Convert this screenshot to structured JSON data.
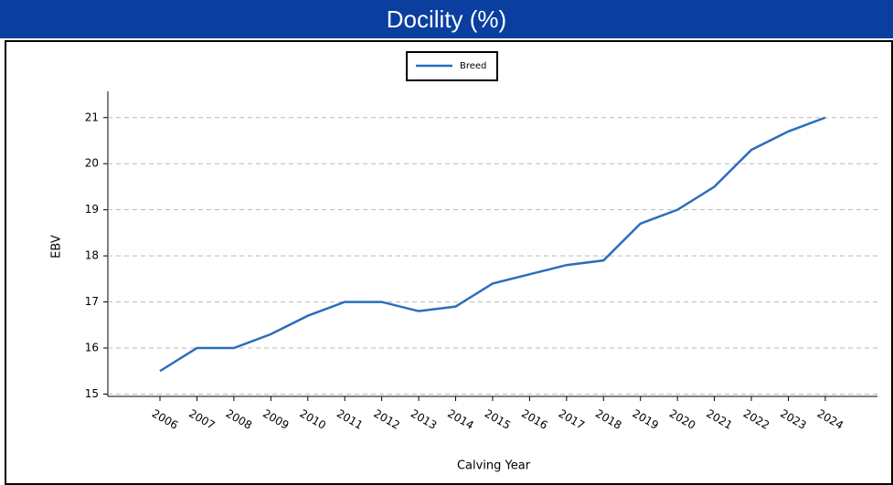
{
  "header": {
    "title": "Docility (%)"
  },
  "chart_data": {
    "type": "line",
    "categories": [
      "2006",
      "2007",
      "2008",
      "2009",
      "2010",
      "2011",
      "2012",
      "2013",
      "2014",
      "2015",
      "2016",
      "2017",
      "2018",
      "2019",
      "2020",
      "2021",
      "2022",
      "2023",
      "2024"
    ],
    "series": [
      {
        "name": "Breed",
        "color": "#2a6ebb",
        "values": [
          15.5,
          16,
          16,
          16.3,
          16.7,
          17,
          17,
          16.8,
          16.9,
          17.4,
          17.6,
          17.8,
          17.9,
          18.7,
          19,
          19.5,
          20.3,
          20.7,
          21
        ]
      }
    ],
    "ylabel": "EBV",
    "xlabel": "Calving Year",
    "ylim": [
      14.95,
      21.57
    ],
    "yticks": [
      15,
      16,
      17,
      18,
      19,
      20,
      21
    ],
    "grid": true,
    "legend": "top"
  }
}
